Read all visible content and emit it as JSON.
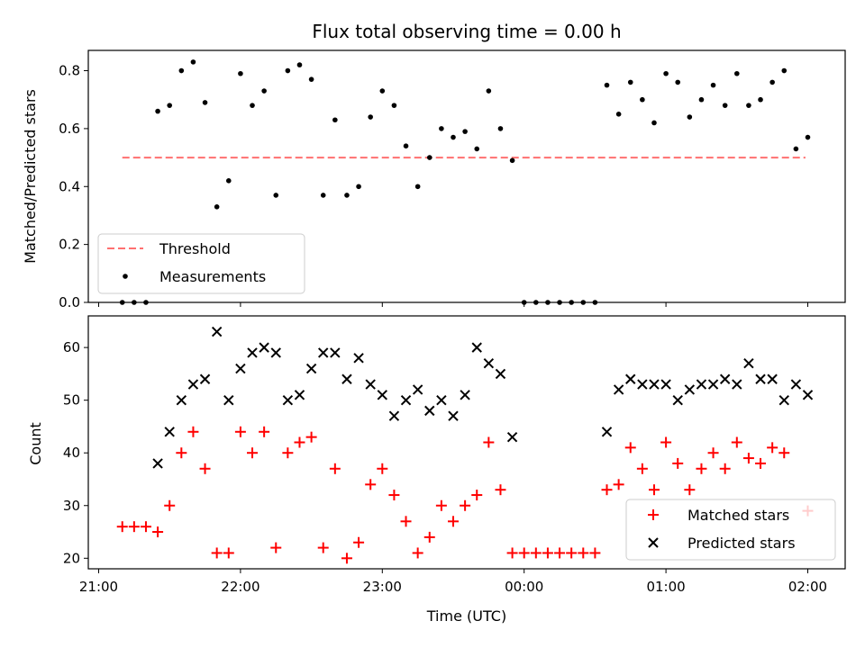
{
  "title": "Flux total observing time = 0.00 h",
  "chart_data": [
    {
      "type": "scatter",
      "name": "ratio",
      "ylabel": "Matched/Predicted stars",
      "xlim": [
        "21:00",
        "02:00"
      ],
      "ylim": [
        0,
        0.87
      ],
      "yticks": [
        0.0,
        0.2,
        0.4,
        0.6,
        0.8
      ],
      "ytick_labels": [
        "0.0",
        "0.2",
        "0.4",
        "0.6",
        "0.8"
      ],
      "legend_position": "bottom-left",
      "threshold": {
        "name": "Threshold",
        "value": 0.5,
        "x_start": "21:10",
        "x_end": "01:59",
        "color": "#ff7070"
      },
      "series": [
        {
          "name": "Measurements",
          "color": "#000000",
          "points": [
            [
              "21:10",
              0.0
            ],
            [
              "21:15",
              0.0
            ],
            [
              "21:20",
              0.0
            ],
            [
              "21:25",
              0.66
            ],
            [
              "21:30",
              0.68
            ],
            [
              "21:35",
              0.8
            ],
            [
              "21:40",
              0.83
            ],
            [
              "21:45",
              0.69
            ],
            [
              "21:50",
              0.33
            ],
            [
              "21:55",
              0.42
            ],
            [
              "22:00",
              0.79
            ],
            [
              "22:05",
              0.68
            ],
            [
              "22:10",
              0.73
            ],
            [
              "22:15",
              0.37
            ],
            [
              "22:20",
              0.8
            ],
            [
              "22:25",
              0.82
            ],
            [
              "22:30",
              0.77
            ],
            [
              "22:35",
              0.37
            ],
            [
              "22:40",
              0.63
            ],
            [
              "22:45",
              0.37
            ],
            [
              "22:50",
              0.4
            ],
            [
              "22:55",
              0.64
            ],
            [
              "23:00",
              0.73
            ],
            [
              "23:05",
              0.68
            ],
            [
              "23:10",
              0.54
            ],
            [
              "23:15",
              0.4
            ],
            [
              "23:20",
              0.5
            ],
            [
              "23:25",
              0.6
            ],
            [
              "23:30",
              0.57
            ],
            [
              "23:35",
              0.59
            ],
            [
              "23:40",
              0.53
            ],
            [
              "23:45",
              0.73
            ],
            [
              "23:50",
              0.6
            ],
            [
              "23:55",
              0.49
            ],
            [
              "00:00",
              0.0
            ],
            [
              "00:05",
              0.0
            ],
            [
              "00:10",
              0.0
            ],
            [
              "00:15",
              0.0
            ],
            [
              "00:20",
              0.0
            ],
            [
              "00:25",
              0.0
            ],
            [
              "00:30",
              0.0
            ],
            [
              "00:35",
              0.75
            ],
            [
              "00:40",
              0.65
            ],
            [
              "00:45",
              0.76
            ],
            [
              "00:50",
              0.7
            ],
            [
              "00:55",
              0.62
            ],
            [
              "01:00",
              0.79
            ],
            [
              "01:05",
              0.76
            ],
            [
              "01:10",
              0.64
            ],
            [
              "01:15",
              0.7
            ],
            [
              "01:20",
              0.75
            ],
            [
              "01:25",
              0.68
            ],
            [
              "01:30",
              0.79
            ],
            [
              "01:35",
              0.68
            ],
            [
              "01:40",
              0.7
            ],
            [
              "01:45",
              0.76
            ],
            [
              "01:50",
              0.8
            ],
            [
              "01:55",
              0.53
            ],
            [
              "02:00",
              0.57
            ]
          ]
        }
      ]
    },
    {
      "type": "scatter",
      "name": "counts",
      "xlabel": "Time (UTC)",
      "ylabel": "Count",
      "xlim": [
        "21:00",
        "02:00"
      ],
      "ylim": [
        18,
        66
      ],
      "yticks": [
        20,
        30,
        40,
        50,
        60
      ],
      "ytick_labels": [
        "20",
        "30",
        "40",
        "50",
        "60"
      ],
      "xticks": [
        "21:00",
        "22:00",
        "23:00",
        "00:00",
        "01:00",
        "02:00"
      ],
      "xtick_labels": [
        "21:00",
        "22:00",
        "23:00",
        "00:00",
        "01:00",
        "02:00"
      ],
      "legend_position": "bottom-right",
      "series": [
        {
          "name": "Matched stars",
          "marker": "plus",
          "color": "#ff0000",
          "points": [
            [
              "21:10",
              26
            ],
            [
              "21:15",
              26
            ],
            [
              "21:20",
              26
            ],
            [
              "21:25",
              25
            ],
            [
              "21:30",
              30
            ],
            [
              "21:35",
              40
            ],
            [
              "21:40",
              44
            ],
            [
              "21:45",
              37
            ],
            [
              "21:50",
              21
            ],
            [
              "21:55",
              21
            ],
            [
              "22:00",
              44
            ],
            [
              "22:05",
              40
            ],
            [
              "22:10",
              44
            ],
            [
              "22:15",
              22
            ],
            [
              "22:20",
              40
            ],
            [
              "22:25",
              42
            ],
            [
              "22:30",
              43
            ],
            [
              "22:35",
              22
            ],
            [
              "22:40",
              37
            ],
            [
              "22:45",
              20
            ],
            [
              "22:50",
              23
            ],
            [
              "22:55",
              34
            ],
            [
              "23:00",
              37
            ],
            [
              "23:05",
              32
            ],
            [
              "23:10",
              27
            ],
            [
              "23:15",
              21
            ],
            [
              "23:20",
              24
            ],
            [
              "23:25",
              30
            ],
            [
              "23:30",
              27
            ],
            [
              "23:35",
              30
            ],
            [
              "23:40",
              32
            ],
            [
              "23:45",
              42
            ],
            [
              "23:50",
              33
            ],
            [
              "23:55",
              21
            ],
            [
              "00:00",
              21
            ],
            [
              "00:05",
              21
            ],
            [
              "00:10",
              21
            ],
            [
              "00:15",
              21
            ],
            [
              "00:20",
              21
            ],
            [
              "00:25",
              21
            ],
            [
              "00:30",
              21
            ],
            [
              "00:35",
              33
            ],
            [
              "00:40",
              34
            ],
            [
              "00:45",
              41
            ],
            [
              "00:50",
              37
            ],
            [
              "00:55",
              33
            ],
            [
              "01:00",
              42
            ],
            [
              "01:05",
              38
            ],
            [
              "01:10",
              33
            ],
            [
              "01:15",
              37
            ],
            [
              "01:20",
              40
            ],
            [
              "01:25",
              37
            ],
            [
              "01:30",
              42
            ],
            [
              "01:35",
              39
            ],
            [
              "01:40",
              38
            ],
            [
              "01:45",
              41
            ],
            [
              "01:50",
              40
            ],
            [
              "02:00",
              29
            ]
          ]
        },
        {
          "name": "Predicted stars",
          "marker": "x",
          "color": "#000000",
          "points": [
            [
              "21:25",
              38
            ],
            [
              "21:30",
              44
            ],
            [
              "21:35",
              50
            ],
            [
              "21:40",
              53
            ],
            [
              "21:45",
              54
            ],
            [
              "21:50",
              63
            ],
            [
              "21:55",
              50
            ],
            [
              "22:00",
              56
            ],
            [
              "22:05",
              59
            ],
            [
              "22:10",
              60
            ],
            [
              "22:15",
              59
            ],
            [
              "22:20",
              50
            ],
            [
              "22:25",
              51
            ],
            [
              "22:30",
              56
            ],
            [
              "22:35",
              59
            ],
            [
              "22:40",
              59
            ],
            [
              "22:45",
              54
            ],
            [
              "22:50",
              58
            ],
            [
              "22:55",
              53
            ],
            [
              "23:00",
              51
            ],
            [
              "23:05",
              47
            ],
            [
              "23:10",
              50
            ],
            [
              "23:15",
              52
            ],
            [
              "23:20",
              48
            ],
            [
              "23:25",
              50
            ],
            [
              "23:30",
              47
            ],
            [
              "23:35",
              51
            ],
            [
              "23:40",
              60
            ],
            [
              "23:45",
              57
            ],
            [
              "23:50",
              55
            ],
            [
              "23:55",
              43
            ],
            [
              "00:35",
              44
            ],
            [
              "00:40",
              52
            ],
            [
              "00:45",
              54
            ],
            [
              "00:50",
              53
            ],
            [
              "00:55",
              53
            ],
            [
              "01:00",
              53
            ],
            [
              "01:05",
              50
            ],
            [
              "01:10",
              52
            ],
            [
              "01:15",
              53
            ],
            [
              "01:20",
              53
            ],
            [
              "01:25",
              54
            ],
            [
              "01:30",
              53
            ],
            [
              "01:35",
              57
            ],
            [
              "01:40",
              54
            ],
            [
              "01:45",
              54
            ],
            [
              "01:50",
              50
            ],
            [
              "01:55",
              53
            ],
            [
              "02:00",
              51
            ]
          ]
        }
      ]
    }
  ]
}
